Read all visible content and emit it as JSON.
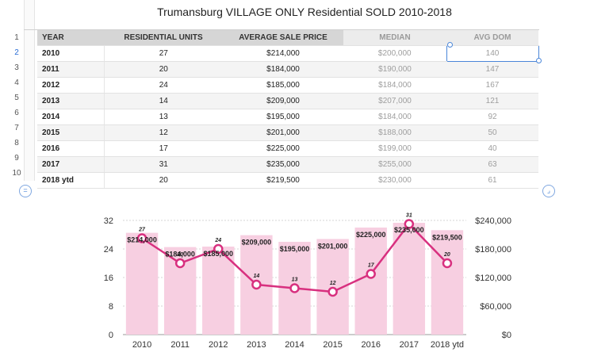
{
  "sheet": {
    "title": "Trumansburg VILLAGE ONLY Residential SOLD  2010-2018",
    "row_numbers": [
      "1",
      "2",
      "3",
      "4",
      "5",
      "6",
      "7",
      "8",
      "9",
      "10"
    ],
    "headers": [
      "YEAR",
      "RESIDENTIAL UNITS",
      "AVERAGE SALE PRICE",
      "MEDIAN",
      "AVG DOM"
    ],
    "rows": [
      {
        "year": "2010",
        "units": "27",
        "avg": "$214,000",
        "median": "$200,000",
        "dom": "140"
      },
      {
        "year": "2011",
        "units": "20",
        "avg": "$184,000",
        "median": "$190,000",
        "dom": "147"
      },
      {
        "year": "2012",
        "units": "24",
        "avg": "$185,000",
        "median": "$184,000",
        "dom": "167"
      },
      {
        "year": "2013",
        "units": "14",
        "avg": "$209,000",
        "median": "$207,000",
        "dom": "121"
      },
      {
        "year": "2014",
        "units": "13",
        "avg": "$195,000",
        "median": "$184,000",
        "dom": "92"
      },
      {
        "year": "2015",
        "units": "12",
        "avg": "$201,000",
        "median": "$188,000",
        "dom": "50"
      },
      {
        "year": "2016",
        "units": "17",
        "avg": "$225,000",
        "median": "$199,000",
        "dom": "40"
      },
      {
        "year": "2017",
        "units": "31",
        "avg": "$235,000",
        "median": "$255,000",
        "dom": "63"
      },
      {
        "year": "2018 ytd",
        "units": "20",
        "avg": "$219,500",
        "median": "$230,000",
        "dom": "61"
      }
    ],
    "controls": {
      "left_symbol": "=",
      "right_symbol": "⌟"
    }
  },
  "chart_data": {
    "type": "bar",
    "categories": [
      "2010",
      "2011",
      "2012",
      "2013",
      "2014",
      "2015",
      "2016",
      "2017",
      "2018 ytd"
    ],
    "series": [
      {
        "type": "bar",
        "axis": "right",
        "values": [
          214000,
          184000,
          185000,
          209000,
          195000,
          201000,
          225000,
          235000,
          219500
        ],
        "labels": [
          "$214,000",
          "$184,000",
          "$185,000",
          "$209,000",
          "$195,000",
          "$201,000",
          "$225,000",
          "$235,000",
          "$219,500"
        ],
        "color": "#f7cfe1"
      },
      {
        "type": "line",
        "axis": "left",
        "values": [
          27,
          20,
          24,
          14,
          13,
          12,
          17,
          31,
          20
        ],
        "labels": [
          "27",
          "20",
          "24",
          "14",
          "13",
          "12",
          "17",
          "31",
          "20"
        ],
        "color": "#d8307f"
      }
    ],
    "y_left": {
      "min": 0,
      "max": 32,
      "ticks": [
        "0",
        "8",
        "16",
        "24",
        "32"
      ]
    },
    "y_right": {
      "min": 0,
      "max": 240000,
      "ticks": [
        "$0",
        "$60,000",
        "$120,000",
        "$180,000",
        "$240,000"
      ]
    },
    "grid": true,
    "colors": {
      "bar": "#f7cfe1",
      "line": "#d8307f",
      "grid": "#c8c8c8"
    }
  }
}
